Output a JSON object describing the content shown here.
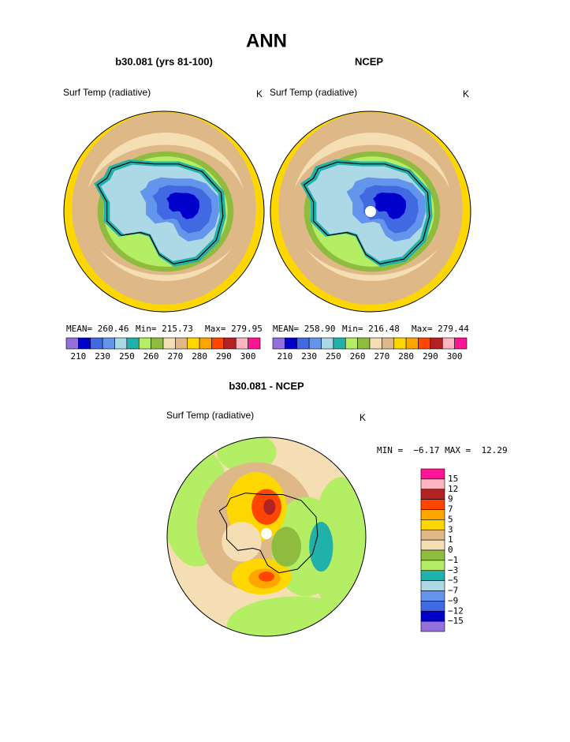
{
  "title": "ANN",
  "panels": [
    {
      "title": "b30.081 (yrs 81-100)",
      "variable": "Surf Temp (radiative)",
      "units": "K",
      "stats": [
        "MEAN= 260.46",
        "Min= 215.73",
        "Max= 279.95"
      ],
      "colorbar": {
        "labels": [
          210,
          230,
          250,
          260,
          270,
          280,
          290,
          300
        ]
      }
    },
    {
      "title": "NCEP",
      "variable": "Surf Temp (radiative)",
      "units": "K",
      "stats": [
        "MEAN= 258.90",
        "Min= 216.48",
        "Max= 279.44"
      ],
      "colorbar": {
        "labels": [
          210,
          230,
          250,
          260,
          270,
          280,
          290,
          300
        ]
      }
    }
  ],
  "colors": [
    "#9370db",
    "#0000cd",
    "#4169e1",
    "#6495ed",
    "#add8e6",
    "#20b2aa",
    "#b4ee64",
    "#8fbc3f",
    "#f5deb3",
    "#deb887",
    "#ffd700",
    "#ffa500",
    "#ff4500",
    "#b22222",
    "#ffb6c1",
    "#ff1493"
  ],
  "difference": {
    "title": "b30.081 - NCEP",
    "variable": "Surf Temp (radiative)",
    "units": "K",
    "stats": "MIN =  −6.17 MAX =  12.29",
    "colorbar": {
      "labels": [
        "15",
        "12",
        "9",
        "7",
        "5",
        "3",
        "1",
        "0",
        "−1",
        "−3",
        "−5",
        "−7",
        "−9",
        "−12",
        "−15"
      ]
    }
  }
}
